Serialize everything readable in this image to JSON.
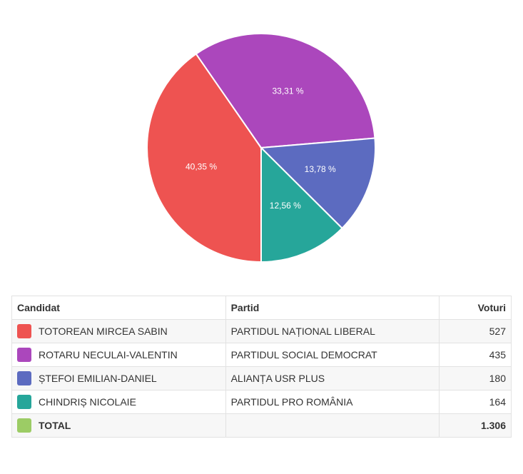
{
  "chart_data": {
    "type": "pie",
    "slices": [
      {
        "label": "TOTOREAN MIRCEA SABIN",
        "value": 527,
        "percent_label": "40,35 %",
        "color": "#ee5351"
      },
      {
        "label": "ROTARU NECULAI-VALENTIN",
        "value": 435,
        "percent_label": "33,31 %",
        "color": "#ab47bc"
      },
      {
        "label": "ȘTEFOI EMILIAN-DANIEL",
        "value": 180,
        "percent_label": "13,78 %",
        "color": "#5c6bc0"
      },
      {
        "label": "CHINDRIȘ NICOLAIE",
        "value": 164,
        "percent_label": "12,56 %",
        "color": "#26a69a"
      }
    ]
  },
  "table": {
    "headers": {
      "candidate": "Candidat",
      "party": "Partid",
      "votes": "Voturi"
    },
    "rows": [
      {
        "candidate": "TOTOREAN MIRCEA SABIN",
        "party": "PARTIDUL NAȚIONAL LIBERAL",
        "votes": "527",
        "color": "#ee5351"
      },
      {
        "candidate": "ROTARU NECULAI-VALENTIN",
        "party": "PARTIDUL SOCIAL DEMOCRAT",
        "votes": "435",
        "color": "#ab47bc"
      },
      {
        "candidate": "ȘTEFOI EMILIAN-DANIEL",
        "party": "ALIANȚA USR PLUS",
        "votes": "180",
        "color": "#5c6bc0"
      },
      {
        "candidate": "CHINDRIȘ NICOLAIE",
        "party": "PARTIDUL PRO ROMÂNIA",
        "votes": "164",
        "color": "#26a69a"
      }
    ],
    "total": {
      "label": "TOTAL",
      "party": "",
      "votes": "1.306",
      "color": "#9ccc65"
    }
  }
}
